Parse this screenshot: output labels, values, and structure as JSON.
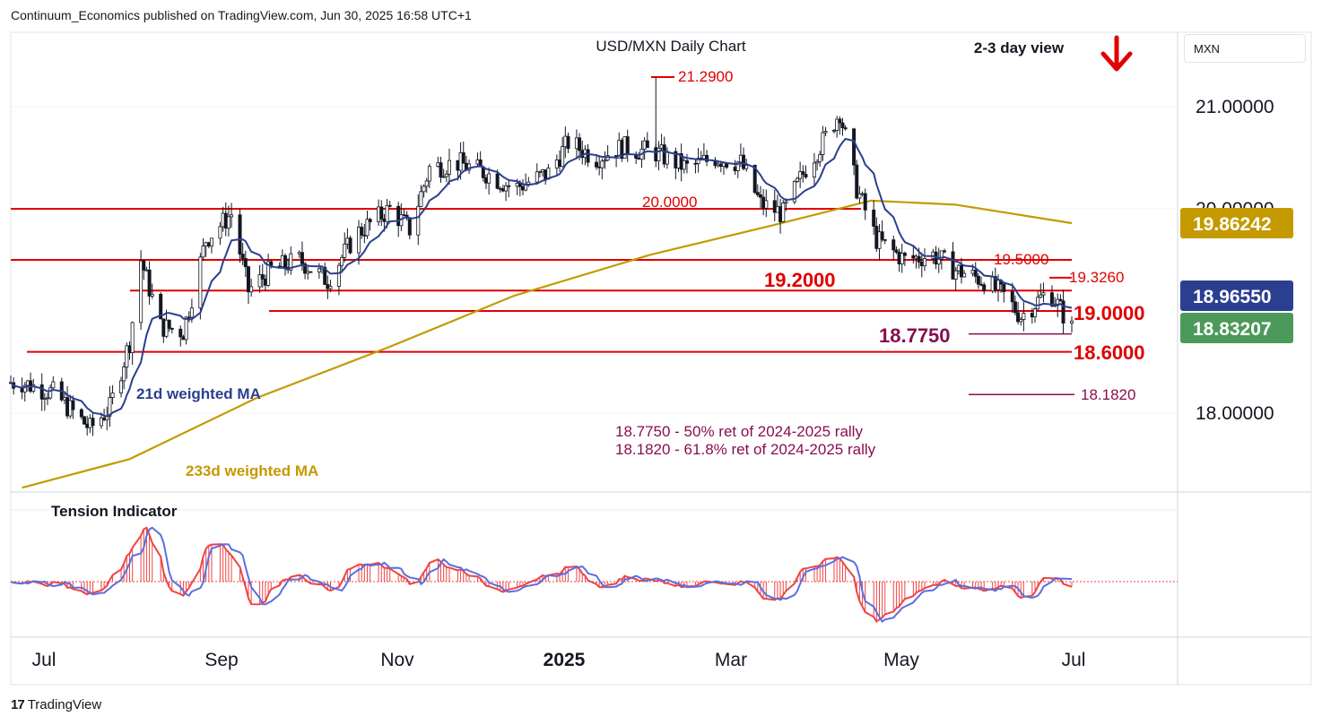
{
  "header": {
    "publisher_line": "Continuum_Economics published on TradingView.com, Jun 30, 2025 16:58 UTC+1"
  },
  "footer": {
    "brand": "TradingView",
    "logo_glyph": "17"
  },
  "currency": "MXN",
  "chart": {
    "title": "USD/MXN Daily Chart",
    "view_label": "2-3 day view",
    "direction": "down",
    "colors": {
      "resistance": "#e00000",
      "fib": "#880e4f",
      "ma21": "#2a3f8f",
      "ma233": "#c49a00",
      "candle": "#131722",
      "last_price": "#4c9a5a",
      "ma21_box": "#2a3f8f",
      "ma233_box": "#c49a00",
      "tension_red": "#ef4444",
      "tension_blue": "#5b6ee1"
    }
  },
  "labels": {
    "high": "21.2900",
    "level_20": "20.0000",
    "level_195": "19.5000",
    "level_19326": "19.3260",
    "level_192": "19.2000",
    "level_19": "19.0000",
    "level_18775": "18.7750",
    "level_186": "18.6000",
    "level_18182": "18.1820",
    "ma21_label": "21d weighted MA",
    "ma233_label": "233d weighted MA",
    "note1": "18.7750 - 50% ret of 2024-2025 rally",
    "note2": "18.1820 - 61.8% ret of 2024-2025 rally",
    "tension": "Tension Indicator"
  },
  "price_axis": {
    "ticks": [
      "21.00000",
      "20.00000",
      "18.00000"
    ],
    "ma233_value": "19.86242",
    "ma21_value": "18.96550",
    "last_value": "18.83207"
  },
  "time_axis": {
    "ticks": [
      "Jul",
      "Sep",
      "Nov",
      "2025",
      "Mar",
      "May",
      "Jul"
    ]
  },
  "chart_data": {
    "type": "candlestick",
    "title": "USD/MXN Daily Chart",
    "ylim": [
      17.25,
      21.6
    ],
    "x_ticks": [
      "Jul",
      "Sep",
      "Nov",
      "2025",
      "Mar",
      "May",
      "Jul"
    ],
    "y_ticks": [
      21.0,
      20.0,
      18.0
    ],
    "close_path": [
      [
        "2024-06-24",
        18.3
      ],
      [
        "2024-07-05",
        18.2
      ],
      [
        "2024-07-18",
        17.85
      ],
      [
        "2024-07-25",
        18.05
      ],
      [
        "2024-08-01",
        18.7
      ],
      [
        "2024-08-05",
        19.5
      ],
      [
        "2024-08-12",
        18.85
      ],
      [
        "2024-08-20",
        18.8
      ],
      [
        "2024-08-28",
        19.7
      ],
      [
        "2024-09-06",
        19.95
      ],
      [
        "2024-09-12",
        19.2
      ],
      [
        "2024-09-20",
        19.4
      ],
      [
        "2024-09-30",
        19.5
      ],
      [
        "2024-10-10",
        19.3
      ],
      [
        "2024-10-20",
        19.75
      ],
      [
        "2024-11-01",
        20.0
      ],
      [
        "2024-11-08",
        19.8
      ],
      [
        "2024-11-15",
        20.4
      ],
      [
        "2024-11-25",
        20.45
      ],
      [
        "2024-12-05",
        20.35
      ],
      [
        "2024-12-15",
        20.2
      ],
      [
        "2024-12-27",
        20.35
      ],
      [
        "2025-01-03",
        20.65
      ],
      [
        "2025-01-13",
        20.5
      ],
      [
        "2025-01-22",
        20.6
      ],
      [
        "2025-02-03",
        20.55
      ],
      [
        "2025-02-14",
        20.4
      ],
      [
        "2025-02-24",
        20.5
      ],
      [
        "2025-03-05",
        20.45
      ],
      [
        "2025-03-12",
        20.05
      ],
      [
        "2025-03-20",
        19.95
      ],
      [
        "2025-03-28",
        20.4
      ],
      [
        "2025-04-04",
        20.7
      ],
      [
        "2025-04-09",
        20.95
      ],
      [
        "2025-04-15",
        20.2
      ],
      [
        "2025-04-22",
        19.7
      ],
      [
        "2025-05-02",
        19.5
      ],
      [
        "2025-05-12",
        19.55
      ],
      [
        "2025-05-20",
        19.4
      ],
      [
        "2025-05-30",
        19.3
      ],
      [
        "2025-06-06",
        19.15
      ],
      [
        "2025-06-12",
        18.95
      ],
      [
        "2025-06-18",
        19.1
      ],
      [
        "2025-06-22",
        19.2
      ],
      [
        "2025-06-30",
        18.83
      ]
    ],
    "series": [
      {
        "name": "21d weighted MA",
        "last": 18.9655
      },
      {
        "name": "233d weighted MA",
        "last": 19.86242
      }
    ],
    "high": 21.29,
    "levels": [
      20.0,
      19.5,
      19.326,
      19.2,
      19.0,
      18.775,
      18.6,
      18.182
    ],
    "last_price": 18.83207
  }
}
